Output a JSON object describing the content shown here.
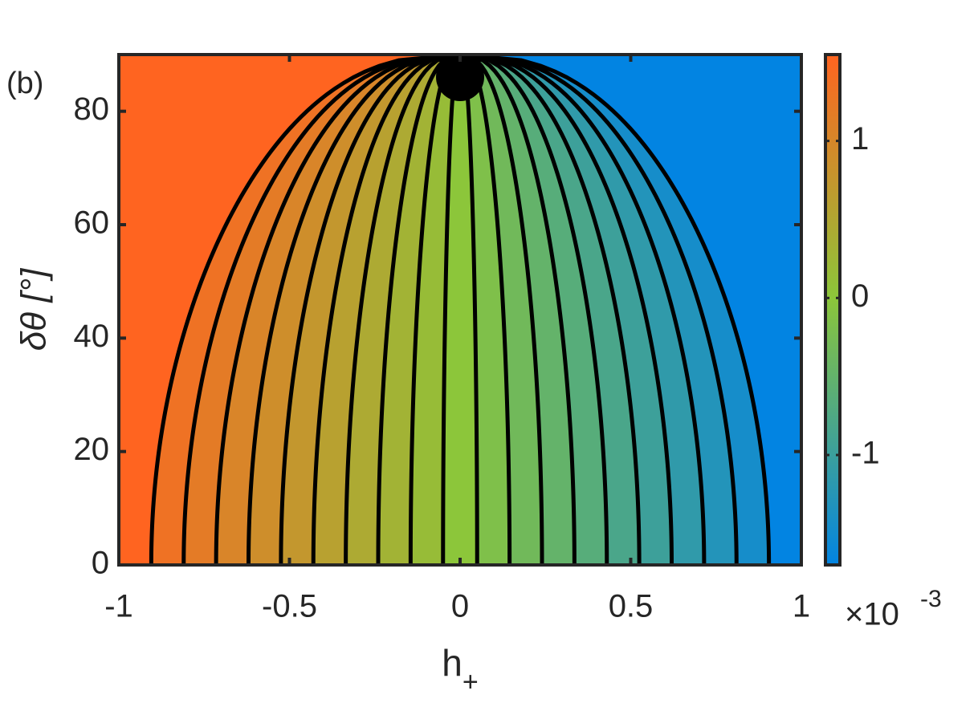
{
  "chart_data": {
    "type": "contour",
    "panel_label": "(b)",
    "xlabel": "h",
    "xlabel_subscript": "+",
    "ylabel": "δθ [°]",
    "xlim": [
      -1,
      1
    ],
    "xticks": [
      -1,
      -0.5,
      0,
      0.5,
      1
    ],
    "ylim": [
      0,
      90
    ],
    "yticks": [
      0,
      20,
      40,
      60,
      80
    ],
    "contour_x0": [
      -0.905,
      -0.81,
      -0.715,
      -0.62,
      -0.525,
      -0.43,
      -0.335,
      -0.24,
      -0.145,
      -0.05,
      0.05,
      0.145,
      0.24,
      0.335,
      0.43,
      0.525,
      0.62,
      0.715,
      0.81,
      0.905
    ],
    "colormap": [
      "#0284e2",
      "#8cc63a",
      "#ff6420"
    ],
    "clim": [
      -1.7,
      1.55
    ],
    "cticks": [
      -1,
      0,
      1
    ],
    "colorbar_multiplier": "×10",
    "colorbar_exponent": "-3"
  }
}
